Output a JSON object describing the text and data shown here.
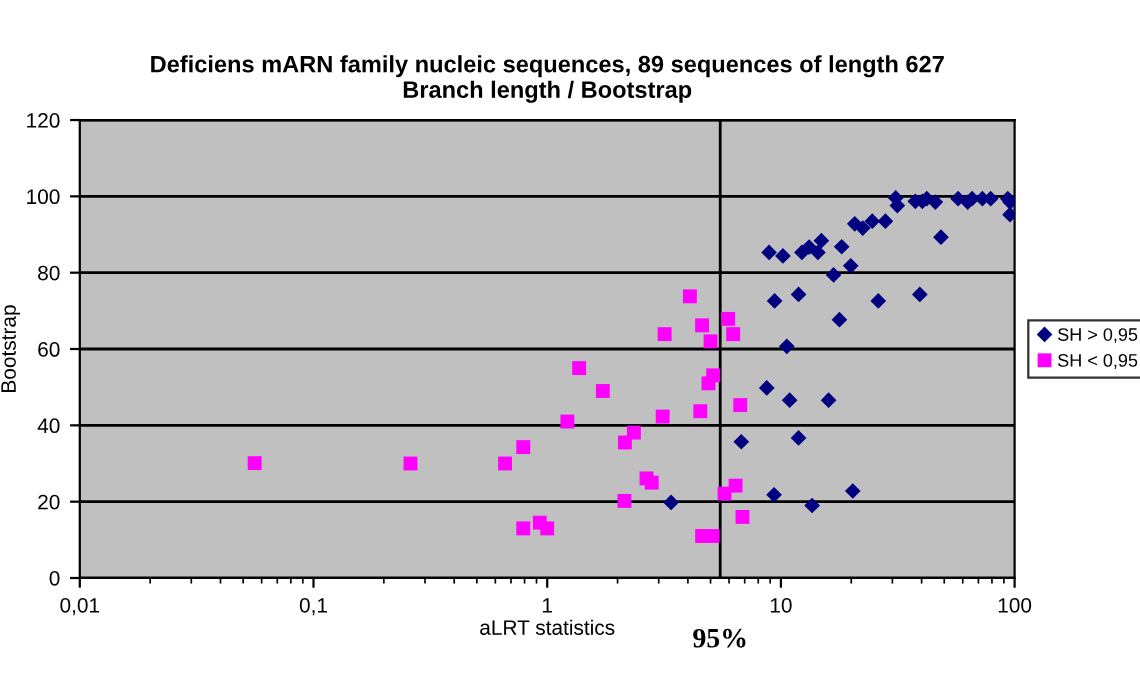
{
  "chart_data": {
    "type": "scatter",
    "title": "Deficiens mARN family nucleic sequences, 89 sequences of length 627\nBranch length / Bootstrap",
    "xlabel": "aLRT statistics",
    "ylabel": "Bootstrap",
    "log": "x",
    "xlim": [
      0.01,
      100
    ],
    "xticks": [
      {
        "value": 0.01,
        "label": "0,01"
      },
      {
        "value": 0.1,
        "label": "0,1"
      },
      1,
      10,
      100
    ],
    "ylim": [
      0,
      120
    ],
    "yticks": [
      0,
      20,
      40,
      60,
      80,
      100,
      120
    ],
    "grid": "y",
    "legend": "right",
    "ref_lines": [
      {
        "axis": "x",
        "value": 5.5,
        "color": "#000000"
      }
    ],
    "annotations": [
      "95%"
    ],
    "series": [
      {
        "name": "SH > 0,95",
        "color": "#000080",
        "marker": "diamond",
        "x": [
          3.39,
          6.77,
          8.7,
          9.35,
          9.4,
          8.9,
          10.2,
          10.6,
          10.9,
          11.9,
          11.9,
          12.3,
          13.2,
          14.4,
          14.9,
          13.6,
          16,
          16.8,
          17.8,
          18.2,
          19.9,
          20.3,
          20.7,
          22.4,
          24.6,
          26.1,
          28,
          31,
          31.5,
          37.6,
          39.3,
          40.3,
          42.1,
          45.8,
          48.4,
          57.3,
          63,
          65.8,
          72.8,
          79,
          93.5,
          95.6,
          95.6
        ],
        "values": [
          19.8,
          35.7,
          49.8,
          21.8,
          72.6,
          85.3,
          84.4,
          60.7,
          46.6,
          74.3,
          36.7,
          85.3,
          86.7,
          85.3,
          88.4,
          19,
          46.6,
          79.4,
          67.7,
          86.8,
          81.8,
          22.8,
          92.8,
          91.7,
          93.5,
          72.6,
          93.5,
          99.6,
          97.6,
          98.7,
          74.3,
          98.7,
          99.4,
          98.5,
          89.3,
          99.4,
          98.5,
          99.4,
          99.4,
          99.4,
          99.4,
          98.5,
          95.2
        ]
      },
      {
        "name": "SH < 0,95",
        "color": "#ff00ff",
        "marker": "square",
        "x": [
          0.056,
          0.26,
          0.66,
          0.79,
          0.79,
          0.93,
          1.0,
          1.22,
          1.37,
          1.73,
          4.08,
          3.18,
          4.6,
          5.0,
          5.95,
          6.25,
          5.13,
          4.9,
          6.7,
          4.52,
          3.12,
          2.35,
          2.15,
          2.14,
          2.66,
          2.8,
          4.6,
          5.1,
          5.74,
          6.4,
          6.85
        ],
        "values": [
          30.1,
          30,
          30,
          34.3,
          13,
          14.5,
          13,
          41,
          55,
          49,
          73.8,
          63.9,
          66.2,
          62,
          67.9,
          63.9,
          53.1,
          51,
          45.3,
          43.7,
          42.3,
          38.1,
          35.5,
          20.2,
          26.1,
          25,
          11,
          11,
          22.1,
          24.2,
          16
        ]
      }
    ]
  }
}
